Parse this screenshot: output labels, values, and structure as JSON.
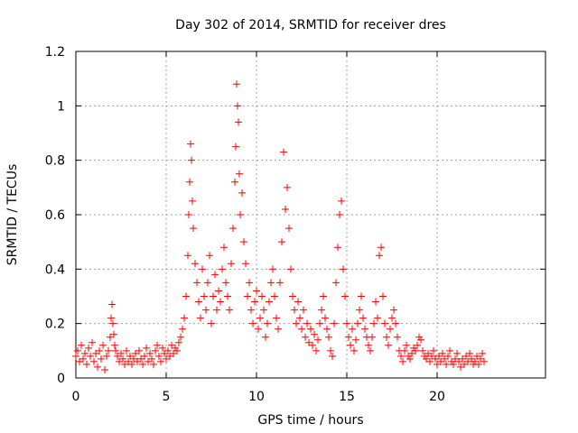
{
  "chart_data": {
    "type": "scatter",
    "title": "Day 302 of 2014, SRMTID for receiver dres",
    "xlabel": "GPS time / hours",
    "ylabel": "SRMTID / TECUs",
    "xlim": [
      0,
      26
    ],
    "ylim": [
      0,
      1.2
    ],
    "x_ticks": [
      0,
      5,
      10,
      15,
      20
    ],
    "x_tick_labels": [
      "0",
      "5",
      "10",
      "15",
      "20"
    ],
    "y_ticks": [
      0,
      0.2,
      0.4,
      0.6,
      0.8,
      1.0,
      1.2
    ],
    "y_tick_labels": [
      "0",
      "0.2",
      "0.4",
      "0.6",
      "0.8",
      "1",
      "1.2"
    ],
    "grid": true,
    "marker": "+",
    "series": [
      {
        "name": "SRMTID",
        "color": "#ff0000",
        "x": [
          0.0,
          0.1,
          0.2,
          0.3,
          0.4,
          0.5,
          0.6,
          0.7,
          0.8,
          0.9,
          1.0,
          1.1,
          1.2,
          1.3,
          1.4,
          1.5,
          1.6,
          1.7,
          1.8,
          1.9,
          1.95,
          2.0,
          2.05,
          2.1,
          2.15,
          2.2,
          2.3,
          2.4,
          2.5,
          2.6,
          2.7,
          2.8,
          2.9,
          3.0,
          3.1,
          3.2,
          3.3,
          3.4,
          3.5,
          3.6,
          3.7,
          3.8,
          3.9,
          4.0,
          4.1,
          4.2,
          4.3,
          4.4,
          4.5,
          4.6,
          4.7,
          4.8,
          4.9,
          5.0,
          5.1,
          5.2,
          5.3,
          5.4,
          5.5,
          5.6,
          5.7,
          5.8,
          5.9,
          6.0,
          6.1,
          6.2,
          6.25,
          6.3,
          6.35,
          6.4,
          6.45,
          6.5,
          6.6,
          6.7,
          6.8,
          6.9,
          7.0,
          7.1,
          7.2,
          7.3,
          7.4,
          7.5,
          7.6,
          7.7,
          7.8,
          7.9,
          8.0,
          8.1,
          8.2,
          8.3,
          8.4,
          8.5,
          8.6,
          8.7,
          8.8,
          8.85,
          8.9,
          8.95,
          9.0,
          9.05,
          9.1,
          9.2,
          9.3,
          9.4,
          9.5,
          9.6,
          9.7,
          9.8,
          9.9,
          10.0,
          10.1,
          10.2,
          10.3,
          10.4,
          10.5,
          10.6,
          10.7,
          10.8,
          10.9,
          11.0,
          11.1,
          11.2,
          11.3,
          11.4,
          11.5,
          11.6,
          11.7,
          11.8,
          11.9,
          12.0,
          12.1,
          12.2,
          12.3,
          12.4,
          12.5,
          12.6,
          12.7,
          12.8,
          12.9,
          13.0,
          13.1,
          13.2,
          13.3,
          13.4,
          13.5,
          13.6,
          13.7,
          13.8,
          13.9,
          14.0,
          14.1,
          14.2,
          14.3,
          14.4,
          14.5,
          14.6,
          14.7,
          14.8,
          14.9,
          15.0,
          15.1,
          15.2,
          15.3,
          15.4,
          15.5,
          15.6,
          15.7,
          15.8,
          15.9,
          16.0,
          16.1,
          16.2,
          16.3,
          16.4,
          16.5,
          16.6,
          16.7,
          16.8,
          16.9,
          17.0,
          17.1,
          17.2,
          17.3,
          17.4,
          17.5,
          17.6,
          17.7,
          17.8,
          17.9,
          18.0,
          18.1,
          18.2,
          18.3,
          18.4,
          18.5,
          18.6,
          18.7,
          18.8,
          18.9,
          19.0,
          19.1,
          19.2,
          19.3,
          19.4,
          19.5,
          19.6,
          19.7,
          19.8,
          19.9,
          20.0,
          20.1,
          20.2,
          20.3,
          20.4,
          20.5,
          20.6,
          20.7,
          20.8,
          20.9,
          21.0,
          21.1,
          21.2,
          21.3,
          21.4,
          21.5,
          21.6,
          21.7,
          21.8,
          21.9,
          22.0,
          22.1,
          22.2,
          22.3,
          22.4,
          22.5,
          22.6
        ],
        "y": [
          0.08,
          0.1,
          0.06,
          0.12,
          0.07,
          0.09,
          0.05,
          0.11,
          0.08,
          0.13,
          0.06,
          0.09,
          0.04,
          0.1,
          0.07,
          0.12,
          0.03,
          0.08,
          0.1,
          0.15,
          0.22,
          0.27,
          0.2,
          0.16,
          0.12,
          0.1,
          0.08,
          0.06,
          0.09,
          0.07,
          0.05,
          0.1,
          0.06,
          0.08,
          0.05,
          0.07,
          0.09,
          0.06,
          0.1,
          0.07,
          0.05,
          0.08,
          0.11,
          0.06,
          0.09,
          0.07,
          0.05,
          0.1,
          0.12,
          0.08,
          0.06,
          0.11,
          0.09,
          0.07,
          0.1,
          0.08,
          0.12,
          0.09,
          0.11,
          0.1,
          0.13,
          0.15,
          0.18,
          0.22,
          0.3,
          0.45,
          0.6,
          0.72,
          0.86,
          0.8,
          0.65,
          0.55,
          0.42,
          0.35,
          0.28,
          0.22,
          0.4,
          0.3,
          0.25,
          0.35,
          0.45,
          0.2,
          0.3,
          0.38,
          0.25,
          0.32,
          0.28,
          0.4,
          0.48,
          0.35,
          0.3,
          0.25,
          0.42,
          0.55,
          0.72,
          0.85,
          1.08,
          1.0,
          0.94,
          0.75,
          0.6,
          0.68,
          0.5,
          0.42,
          0.3,
          0.35,
          0.25,
          0.2,
          0.28,
          0.32,
          0.18,
          0.22,
          0.3,
          0.25,
          0.15,
          0.2,
          0.28,
          0.35,
          0.4,
          0.3,
          0.22,
          0.18,
          0.35,
          0.5,
          0.83,
          0.62,
          0.7,
          0.55,
          0.4,
          0.3,
          0.25,
          0.2,
          0.28,
          0.22,
          0.18,
          0.25,
          0.15,
          0.2,
          0.13,
          0.18,
          0.12,
          0.16,
          0.1,
          0.14,
          0.2,
          0.25,
          0.3,
          0.22,
          0.18,
          0.15,
          0.1,
          0.08,
          0.2,
          0.35,
          0.48,
          0.6,
          0.65,
          0.4,
          0.3,
          0.2,
          0.15,
          0.12,
          0.18,
          0.1,
          0.14,
          0.2,
          0.25,
          0.3,
          0.22,
          0.18,
          0.15,
          0.12,
          0.1,
          0.15,
          0.2,
          0.28,
          0.22,
          0.45,
          0.48,
          0.3,
          0.2,
          0.15,
          0.12,
          0.18,
          0.22,
          0.25,
          0.2,
          0.15,
          0.1,
          0.08,
          0.06,
          0.1,
          0.12,
          0.08,
          0.07,
          0.09,
          0.11,
          0.1,
          0.12,
          0.15,
          0.14,
          0.1,
          0.08,
          0.07,
          0.09,
          0.06,
          0.08,
          0.1,
          0.07,
          0.05,
          0.08,
          0.06,
          0.09,
          0.07,
          0.05,
          0.08,
          0.1,
          0.06,
          0.05,
          0.07,
          0.09,
          0.06,
          0.04,
          0.07,
          0.05,
          0.08,
          0.06,
          0.09,
          0.07,
          0.05,
          0.06,
          0.08,
          0.05,
          0.07,
          0.09,
          0.06
        ]
      }
    ]
  }
}
